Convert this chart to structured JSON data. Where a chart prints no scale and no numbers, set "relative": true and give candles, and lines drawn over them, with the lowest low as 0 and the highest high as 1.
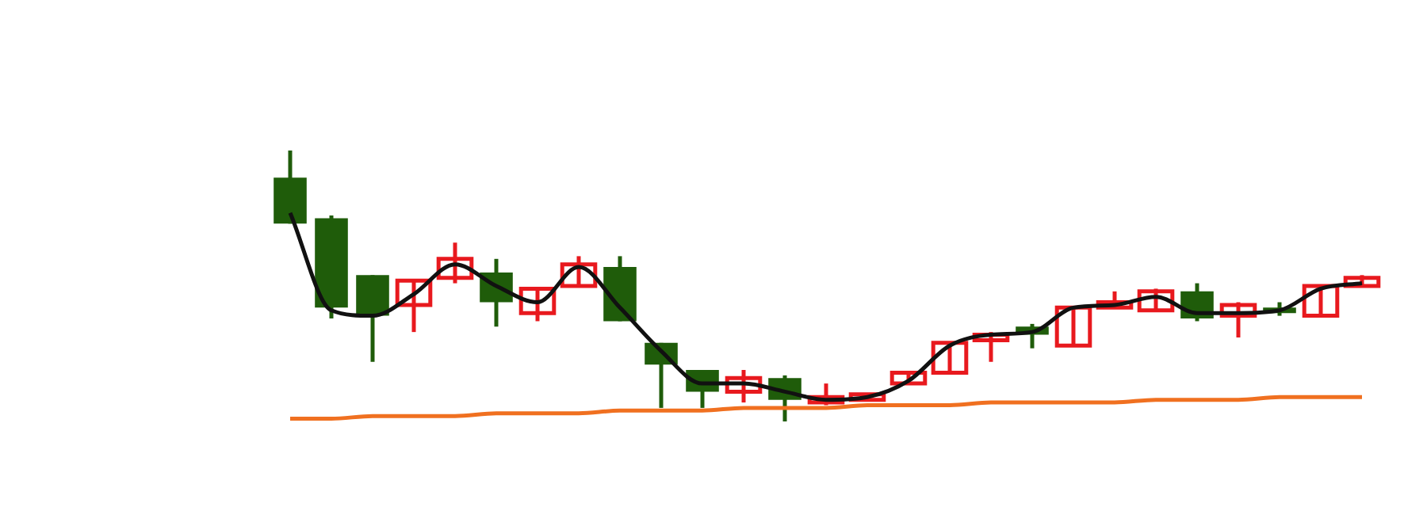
{
  "chart_data": {
    "type": "candlestick",
    "relative": true,
    "categories": [
      null,
      null,
      null,
      null,
      null,
      null,
      null,
      null,
      null,
      null,
      null,
      null,
      null,
      null,
      null,
      null,
      null,
      null,
      null,
      null,
      null,
      null,
      null,
      null,
      null,
      null,
      null
    ],
    "ohlc": [
      [
        0.9,
        1.0,
        0.73,
        0.73
      ],
      [
        0.75,
        0.76,
        0.38,
        0.42
      ],
      [
        0.54,
        0.54,
        0.22,
        0.39
      ],
      [
        0.43,
        0.52,
        0.33,
        0.52
      ],
      [
        0.53,
        0.66,
        0.51,
        0.6
      ],
      [
        0.55,
        0.6,
        0.35,
        0.44
      ],
      [
        0.4,
        0.49,
        0.37,
        0.49
      ],
      [
        0.5,
        0.61,
        0.5,
        0.58
      ],
      [
        0.57,
        0.61,
        0.37,
        0.37
      ],
      [
        0.29,
        0.29,
        0.05,
        0.21
      ],
      [
        0.19,
        0.19,
        0.05,
        0.11
      ],
      [
        0.11,
        0.19,
        0.07,
        0.16
      ],
      [
        0.16,
        0.17,
        0,
        0.08
      ],
      [
        0.07,
        0.14,
        0.06,
        0.09
      ],
      [
        0.08,
        0.1,
        0.08,
        0.1
      ],
      [
        0.14,
        0.18,
        0.14,
        0.18
      ],
      [
        0.18,
        0.29,
        0.18,
        0.29
      ],
      [
        0.3,
        0.33,
        0.22,
        0.32
      ],
      [
        0.35,
        0.36,
        0.27,
        0.32
      ],
      [
        0.28,
        0.42,
        0.28,
        0.42
      ],
      [
        0.42,
        0.48,
        0.42,
        0.44
      ],
      [
        0.41,
        0.49,
        0.41,
        0.48
      ],
      [
        0.48,
        0.51,
        0.37,
        0.38
      ],
      [
        0.39,
        0.44,
        0.31,
        0.43
      ],
      [
        0.42,
        0.44,
        0.39,
        0.4
      ],
      [
        0.39,
        0.5,
        0.39,
        0.5
      ],
      [
        0.5,
        0.54,
        0.5,
        0.53
      ]
    ],
    "colors": [
      "#1f5c0a",
      "#1f5c0a",
      "#1f5c0a",
      "#e8191e",
      "#e8191e",
      "#1f5c0a",
      "#e8191e",
      "#e8191e",
      "#1f5c0a",
      "#1f5c0a",
      "#1f5c0a",
      "#e8191e",
      "#1f5c0a",
      "#e8191e",
      "#e8191e",
      "#e8191e",
      "#e8191e",
      "#e8191e",
      "#1f5c0a",
      "#e8191e",
      "#e8191e",
      "#e8191e",
      "#1f5c0a",
      "#e8191e",
      "#1f5c0a",
      "#e8191e",
      "#e8191e"
    ],
    "series": [
      {
        "type": "line",
        "color": "#111111",
        "values": [
          0.77,
          0.41,
          0.39,
          0.47,
          0.58,
          0.5,
          0.44,
          0.57,
          0.42,
          0.26,
          0.14,
          0.14,
          0.11,
          0.08,
          0.09,
          0.15,
          0.28,
          0.32,
          0.33,
          0.42,
          0.43,
          0.46,
          0.4,
          0.4,
          0.41,
          0.49,
          0.51
        ]
      },
      {
        "type": "line",
        "color": "#f07020",
        "values": [
          0.01,
          0.01,
          0.02,
          0.02,
          0.02,
          0.03,
          0.03,
          0.03,
          0.04,
          0.04,
          0.04,
          0.05,
          0.05,
          0.05,
          0.06,
          0.06,
          0.06,
          0.07,
          0.07,
          0.07,
          0.07,
          0.08,
          0.08,
          0.08,
          0.09,
          0.09,
          0.09
        ]
      }
    ],
    "legend": false,
    "marker": "none"
  }
}
